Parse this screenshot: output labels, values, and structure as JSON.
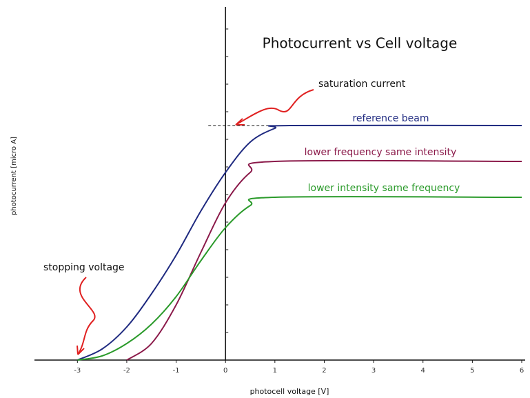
{
  "chart_data": {
    "type": "line",
    "title": "Photocurrent vs Cell voltage",
    "xlabel": "photocell voltage [V]",
    "ylabel": "photocurrent [micro A]",
    "xlim": [
      -3.8,
      6
    ],
    "xticks": [
      -3,
      -2,
      -1,
      0,
      1,
      2,
      3,
      4,
      5,
      6
    ],
    "ylim": [
      0,
      12.8
    ],
    "yticks": [
      1,
      2,
      3,
      4,
      5,
      6,
      7,
      8,
      9,
      10,
      11,
      12
    ],
    "series": [
      {
        "name": "reference beam",
        "color": "#1f2a80",
        "x": [
          -3,
          -2.5,
          -2,
          -1.5,
          -1,
          -0.5,
          0,
          0.5,
          1,
          1.3,
          6
        ],
        "values": [
          0,
          0.4,
          1.2,
          2.4,
          3.8,
          5.4,
          6.8,
          7.9,
          8.4,
          8.5,
          8.5
        ]
      },
      {
        "name": "lower frequency same intensity",
        "color": "#8b1a4a",
        "x": [
          -2,
          -1.5,
          -1,
          -0.5,
          0,
          0.5,
          1,
          6
        ],
        "values": [
          0,
          0.6,
          2.0,
          3.9,
          5.7,
          6.8,
          7.2,
          7.2
        ]
      },
      {
        "name": "lower intensity same frequency",
        "color": "#2a9a2a",
        "x": [
          -3,
          -2.5,
          -2,
          -1.5,
          -1,
          -0.5,
          0,
          0.5,
          1,
          6
        ],
        "values": [
          0,
          0.15,
          0.6,
          1.3,
          2.3,
          3.6,
          4.8,
          5.6,
          5.9,
          5.9
        ]
      }
    ],
    "annotations": [
      "saturation current",
      "stopping voltage"
    ]
  }
}
